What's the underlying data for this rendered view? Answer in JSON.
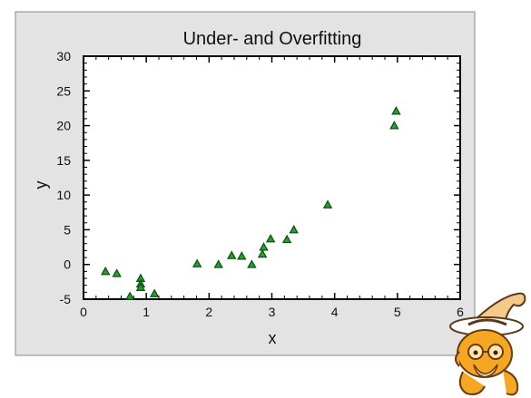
{
  "chart_data": {
    "type": "scatter",
    "title": "Under- and Overfitting",
    "xlabel": "x",
    "ylabel": "y",
    "xlim": [
      0,
      6
    ],
    "ylim": [
      -5,
      30
    ],
    "xticks": [
      "0",
      "1",
      "2",
      "3",
      "4",
      "5",
      "6"
    ],
    "yticks": [
      "-5",
      "0",
      "5",
      "10",
      "15",
      "20",
      "25",
      "30"
    ],
    "grid": false,
    "legend": "none",
    "marker": "triangle",
    "colors": {
      "marker_fill": "#22a12e",
      "marker_edge": "#0f4d14",
      "panel_bg": "#e3e3e3",
      "plot_bg": "#ffffff"
    },
    "series": [
      {
        "x": [
          0.35,
          0.53,
          0.74,
          0.91,
          0.91,
          0.91,
          1.13,
          1.81,
          2.15,
          2.36,
          2.52,
          2.68,
          2.85,
          2.87,
          2.98,
          3.24,
          3.35,
          3.89,
          4.95,
          4.98
        ],
        "y": [
          -1.0,
          -1.3,
          -4.6,
          -2.0,
          -2.8,
          -3.3,
          -4.2,
          0.1,
          0.0,
          1.3,
          1.2,
          0.0,
          1.5,
          2.5,
          3.7,
          3.6,
          5.0,
          8.6,
          20.0,
          22.1
        ]
      }
    ]
  },
  "decoration": {
    "mascot": "wizard-cat-icon"
  }
}
